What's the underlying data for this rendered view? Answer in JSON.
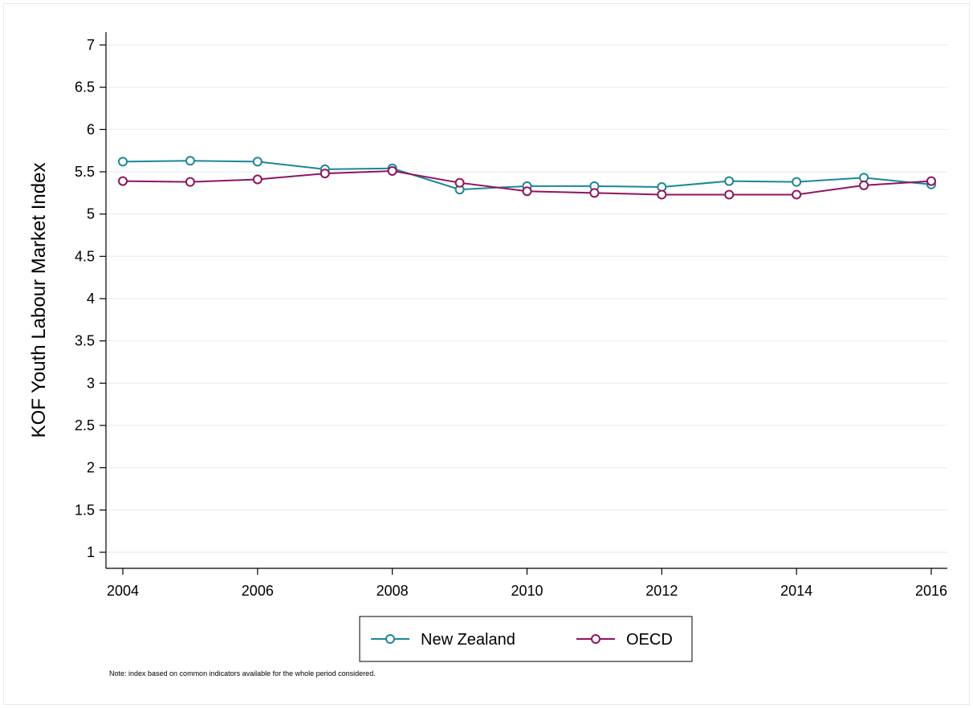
{
  "chart_data": {
    "type": "line",
    "x": [
      2004,
      2005,
      2006,
      2007,
      2008,
      2009,
      2010,
      2011,
      2012,
      2013,
      2014,
      2015,
      2016
    ],
    "xticks": [
      "2004",
      "2006",
      "2008",
      "2010",
      "2012",
      "2014",
      "2016"
    ],
    "xlim": [
      2004,
      2016
    ],
    "ylim": [
      1,
      7
    ],
    "yticks": [
      "1",
      "1.5",
      "2",
      "2.5",
      "3",
      "3.5",
      "4",
      "4.5",
      "5",
      "5.5",
      "6",
      "6.5",
      "7"
    ],
    "xlabel": "",
    "ylabel": "KOF Youth Labour Market Index",
    "grid": true,
    "legend_position": "bottom",
    "series": [
      {
        "name": "New Zealand",
        "color": "#1a879b",
        "marker": "hollow-circle",
        "values": [
          5.62,
          5.63,
          5.62,
          5.53,
          5.54,
          5.29,
          5.33,
          5.33,
          5.32,
          5.39,
          5.38,
          5.43,
          5.35
        ]
      },
      {
        "name": "OECD",
        "color": "#90145e",
        "marker": "hollow-circle",
        "values": [
          5.39,
          5.38,
          5.41,
          5.48,
          5.51,
          5.37,
          5.27,
          5.25,
          5.23,
          5.23,
          5.23,
          5.34,
          5.39
        ]
      }
    ],
    "note": "Note: index based on common indicators available for the whole period considered."
  }
}
